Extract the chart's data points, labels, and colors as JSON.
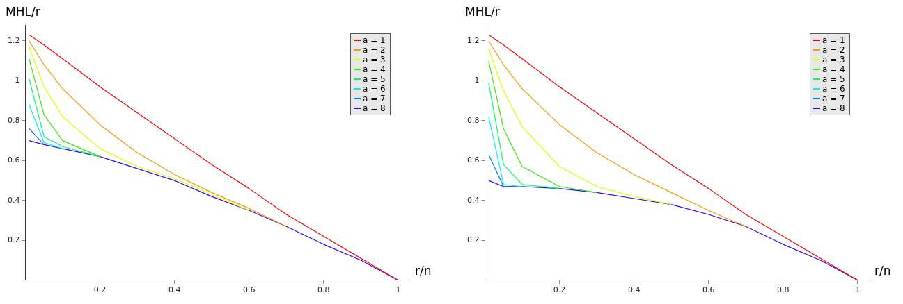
{
  "chart_data": [
    {
      "type": "line",
      "xlabel": "r/n",
      "ylabel": "MHL/r",
      "x": [
        0.01,
        0.05,
        0.1,
        0.2,
        0.3,
        0.4,
        0.5,
        0.6,
        0.7,
        0.8,
        0.9,
        1
      ],
      "xlim": [
        0,
        1.03
      ],
      "ylim": [
        0,
        1.28
      ],
      "xticks": [
        0.2,
        0.4,
        0.6,
        0.8,
        1
      ],
      "yticks": [
        0.2,
        0.4,
        0.6,
        0.8,
        1,
        1.2
      ],
      "grid": false,
      "legend": "top right",
      "marker": "none",
      "line_style": "solid",
      "series": [
        {
          "name": "a = 1",
          "color": "#ff0000",
          "values": [
            1.23,
            1.18,
            1.11,
            0.97,
            0.84,
            0.71,
            0.58,
            0.46,
            0.33,
            0.22,
            0.11,
            0
          ]
        },
        {
          "name": "a = 2",
          "color": "#ff9900",
          "values": [
            1.2,
            1.08,
            0.96,
            0.78,
            0.64,
            0.53,
            0.44,
            0.36,
            0.27,
            null,
            null,
            null
          ]
        },
        {
          "name": "a = 3",
          "color": "#ddff00",
          "values": [
            1.17,
            0.97,
            0.82,
            0.66,
            0.57,
            0.51,
            0.43,
            0.35,
            null,
            null,
            null,
            null
          ]
        },
        {
          "name": "a = 4",
          "color": "#33ee00",
          "values": [
            1.11,
            0.83,
            0.7,
            0.62,
            null,
            null,
            null,
            null,
            null,
            null,
            null,
            null
          ]
        },
        {
          "name": "a = 5",
          "color": "#00ff66",
          "values": [
            1.01,
            0.72,
            0.67,
            0.62,
            null,
            null,
            null,
            null,
            null,
            null,
            null,
            null
          ]
        },
        {
          "name": "a = 6",
          "color": "#00eeff",
          "values": [
            0.88,
            0.69,
            0.66,
            null,
            null,
            null,
            null,
            null,
            null,
            null,
            null,
            null
          ]
        },
        {
          "name": "a = 7",
          "color": "#0077ff",
          "values": [
            0.76,
            0.68,
            null,
            null,
            null,
            null,
            null,
            null,
            null,
            null,
            null,
            null
          ]
        },
        {
          "name": "a = 8",
          "color": "#3300ff",
          "values": [
            0.7,
            0.68,
            0.66,
            0.62,
            0.56,
            0.5,
            0.42,
            0.35,
            0.27,
            0.18,
            0.1,
            0
          ]
        }
      ]
    },
    {
      "type": "line",
      "xlabel": "r/n",
      "ylabel": "MHL/r",
      "x": [
        0.01,
        0.05,
        0.1,
        0.2,
        0.3,
        0.4,
        0.5,
        0.6,
        0.7,
        0.8,
        0.9,
        1
      ],
      "xlim": [
        0,
        1.03
      ],
      "ylim": [
        0,
        1.28
      ],
      "xticks": [
        0.2,
        0.4,
        0.6,
        0.8,
        1
      ],
      "yticks": [
        0.2,
        0.4,
        0.6,
        0.8,
        1,
        1.2
      ],
      "grid": false,
      "legend": "top right",
      "marker": "none",
      "line_style": "solid",
      "series": [
        {
          "name": "a = 1",
          "color": "#ff0000",
          "values": [
            1.23,
            1.18,
            1.11,
            0.97,
            0.84,
            0.71,
            0.58,
            0.46,
            0.33,
            0.22,
            0.11,
            0
          ]
        },
        {
          "name": "a = 2",
          "color": "#ff9900",
          "values": [
            1.2,
            1.08,
            0.96,
            0.78,
            0.64,
            0.53,
            0.44,
            0.35,
            0.27,
            null,
            null,
            null
          ]
        },
        {
          "name": "a = 3",
          "color": "#ddff00",
          "values": [
            1.16,
            0.95,
            0.77,
            0.57,
            0.47,
            0.42,
            0.38,
            null,
            null,
            null,
            null,
            null
          ]
        },
        {
          "name": "a = 4",
          "color": "#33ee00",
          "values": [
            1.1,
            0.76,
            0.57,
            0.47,
            0.44,
            null,
            null,
            null,
            null,
            null,
            null,
            null
          ]
        },
        {
          "name": "a = 5",
          "color": "#00ff66",
          "values": [
            0.99,
            0.58,
            0.48,
            0.46,
            null,
            null,
            null,
            null,
            null,
            null,
            null,
            null
          ]
        },
        {
          "name": "a = 6",
          "color": "#00eeff",
          "values": [
            0.82,
            0.48,
            0.47,
            null,
            null,
            null,
            null,
            null,
            null,
            null,
            null,
            null
          ]
        },
        {
          "name": "a = 7",
          "color": "#0077ff",
          "values": [
            0.63,
            0.47,
            null,
            null,
            null,
            null,
            null,
            null,
            null,
            null,
            null,
            null
          ]
        },
        {
          "name": "a = 8",
          "color": "#3300ff",
          "values": [
            0.5,
            0.47,
            0.47,
            0.46,
            0.44,
            0.41,
            0.38,
            0.33,
            0.27,
            0.18,
            0.1,
            0
          ]
        }
      ]
    }
  ]
}
